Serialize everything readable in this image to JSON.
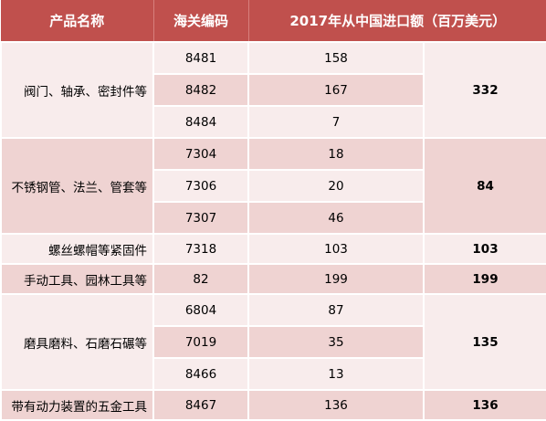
{
  "header": {
    "product": "产品名称",
    "hs_code": "海关编码",
    "import": "2017年从中国进口额（百万美元）"
  },
  "groups": [
    {
      "name": "阀门、轴承、密封件等",
      "total": "332",
      "rows": [
        {
          "code": "8481",
          "value": "158"
        },
        {
          "code": "8482",
          "value": "167"
        },
        {
          "code": "8484",
          "value": "7"
        }
      ]
    },
    {
      "name": "不锈钢管、法兰、管套等",
      "total": "84",
      "rows": [
        {
          "code": "7304",
          "value": "18"
        },
        {
          "code": "7306",
          "value": "20"
        },
        {
          "code": "7307",
          "value": "46"
        }
      ]
    },
    {
      "name": "螺丝螺帽等紧固件",
      "total": "103",
      "rows": [
        {
          "code": "7318",
          "value": "103"
        }
      ]
    },
    {
      "name": "手动工具、园林工具等",
      "total": "199",
      "rows": [
        {
          "code": "82",
          "value": "199"
        }
      ]
    },
    {
      "name": "磨具磨料、石磨石碾等",
      "total": "135",
      "rows": [
        {
          "code": "6804",
          "value": "87"
        },
        {
          "code": "7019",
          "value": "35"
        },
        {
          "code": "8466",
          "value": "13"
        }
      ]
    },
    {
      "name": "带有动力装置的五金工具",
      "total": "136",
      "rows": [
        {
          "code": "8467",
          "value": "136"
        }
      ]
    }
  ]
}
